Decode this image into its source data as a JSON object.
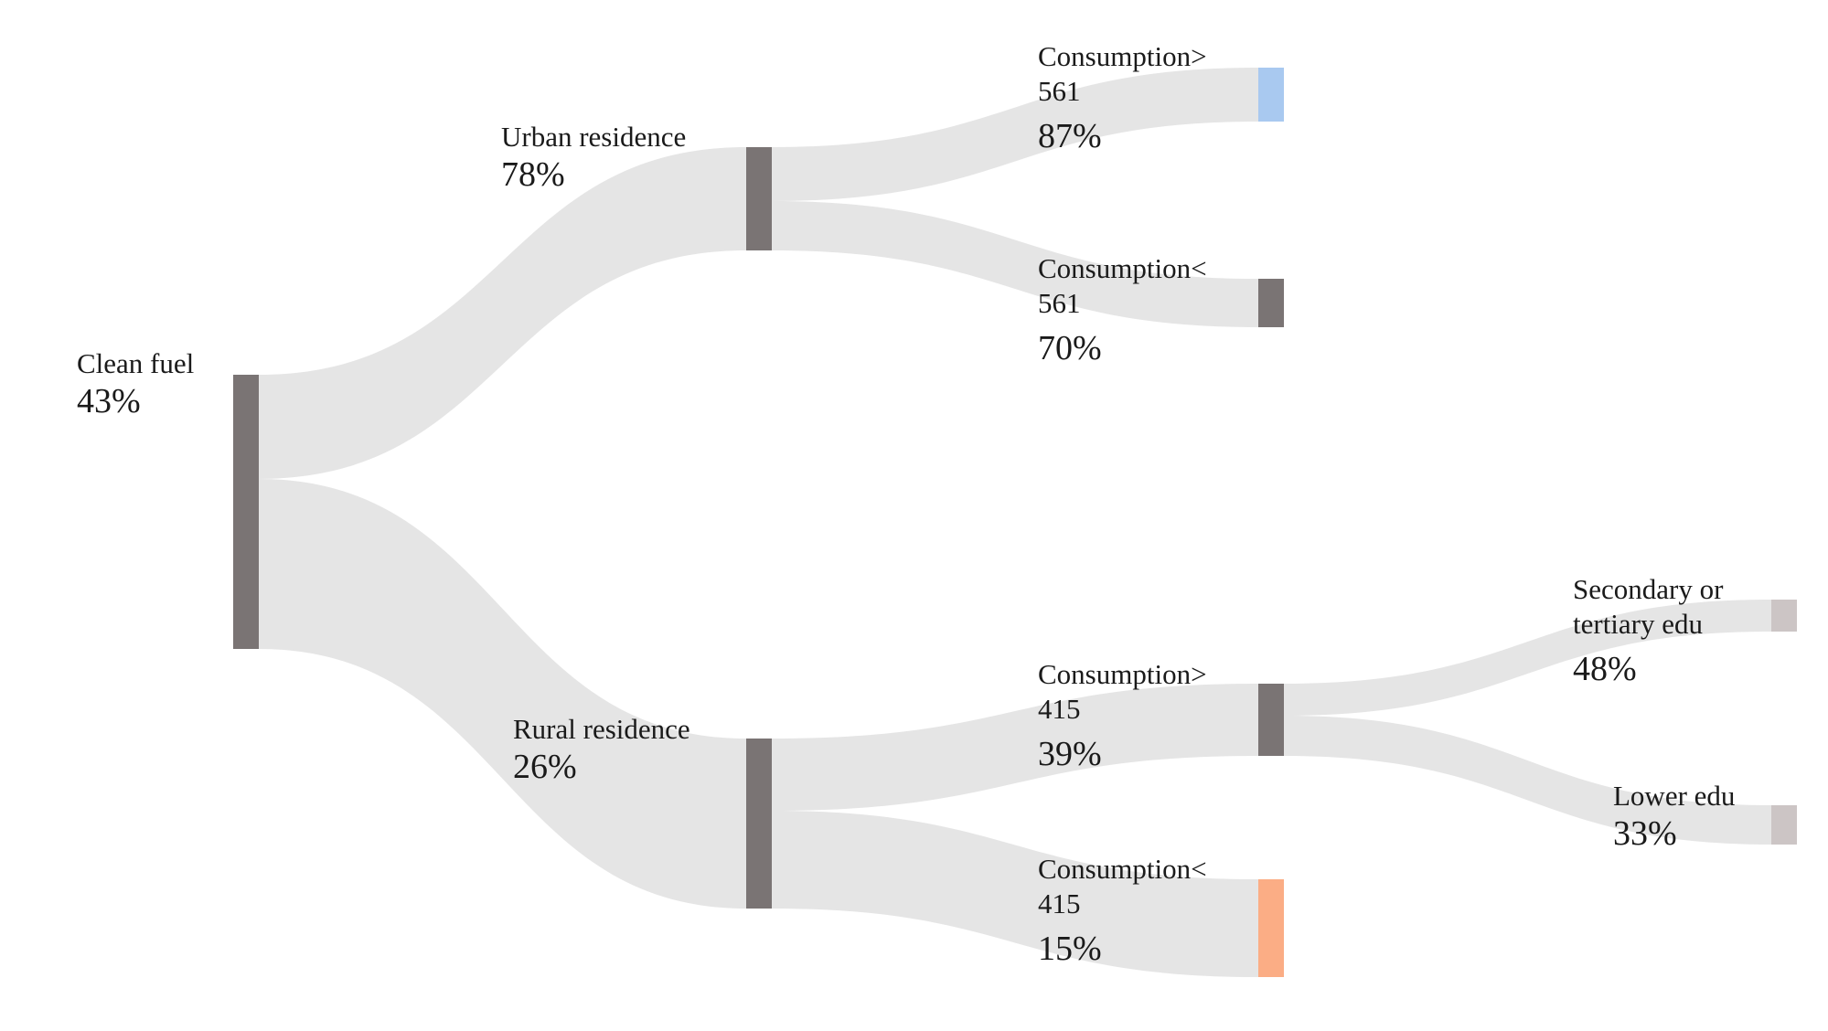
{
  "diagram": {
    "type": "decision-tree-sankey",
    "link_color": "#e5e5e5",
    "nodes": [
      {
        "id": "clean_fuel",
        "name_lines": [
          "Clean fuel"
        ],
        "pct": "43%",
        "color": "#7a7474"
      },
      {
        "id": "urban",
        "name_lines": [
          "Urban residence"
        ],
        "pct": "78%",
        "color": "#7a7474"
      },
      {
        "id": "rural",
        "name_lines": [
          "Rural residence"
        ],
        "pct": "26%",
        "color": "#7a7474"
      },
      {
        "id": "urban_hi",
        "name_lines": [
          "Consumption>",
          "561"
        ],
        "pct": "87%",
        "color": "#a9c9f0"
      },
      {
        "id": "urban_lo",
        "name_lines": [
          "Consumption<",
          "561"
        ],
        "pct": "70%",
        "color": "#7a7474"
      },
      {
        "id": "rural_hi",
        "name_lines": [
          "Consumption>",
          "415"
        ],
        "pct": "39%",
        "color": "#7a7474"
      },
      {
        "id": "rural_lo",
        "name_lines": [
          "Consumption<",
          "415"
        ],
        "pct": "15%",
        "color": "#fbad85"
      },
      {
        "id": "edu_hi",
        "name_lines": [
          "Secondary or",
          "tertiary edu"
        ],
        "pct": "48%",
        "color": "#ccc5c5"
      },
      {
        "id": "edu_lo",
        "name_lines": [
          "Lower edu"
        ],
        "pct": "33%",
        "color": "#ccc5c5"
      }
    ],
    "links": [
      {
        "from": "clean_fuel",
        "to": "urban"
      },
      {
        "from": "clean_fuel",
        "to": "rural"
      },
      {
        "from": "urban",
        "to": "urban_hi"
      },
      {
        "from": "urban",
        "to": "urban_lo"
      },
      {
        "from": "rural",
        "to": "rural_hi"
      },
      {
        "from": "rural",
        "to": "rural_lo"
      },
      {
        "from": "rural_hi",
        "to": "edu_hi"
      },
      {
        "from": "rural_hi",
        "to": "edu_lo"
      }
    ]
  }
}
